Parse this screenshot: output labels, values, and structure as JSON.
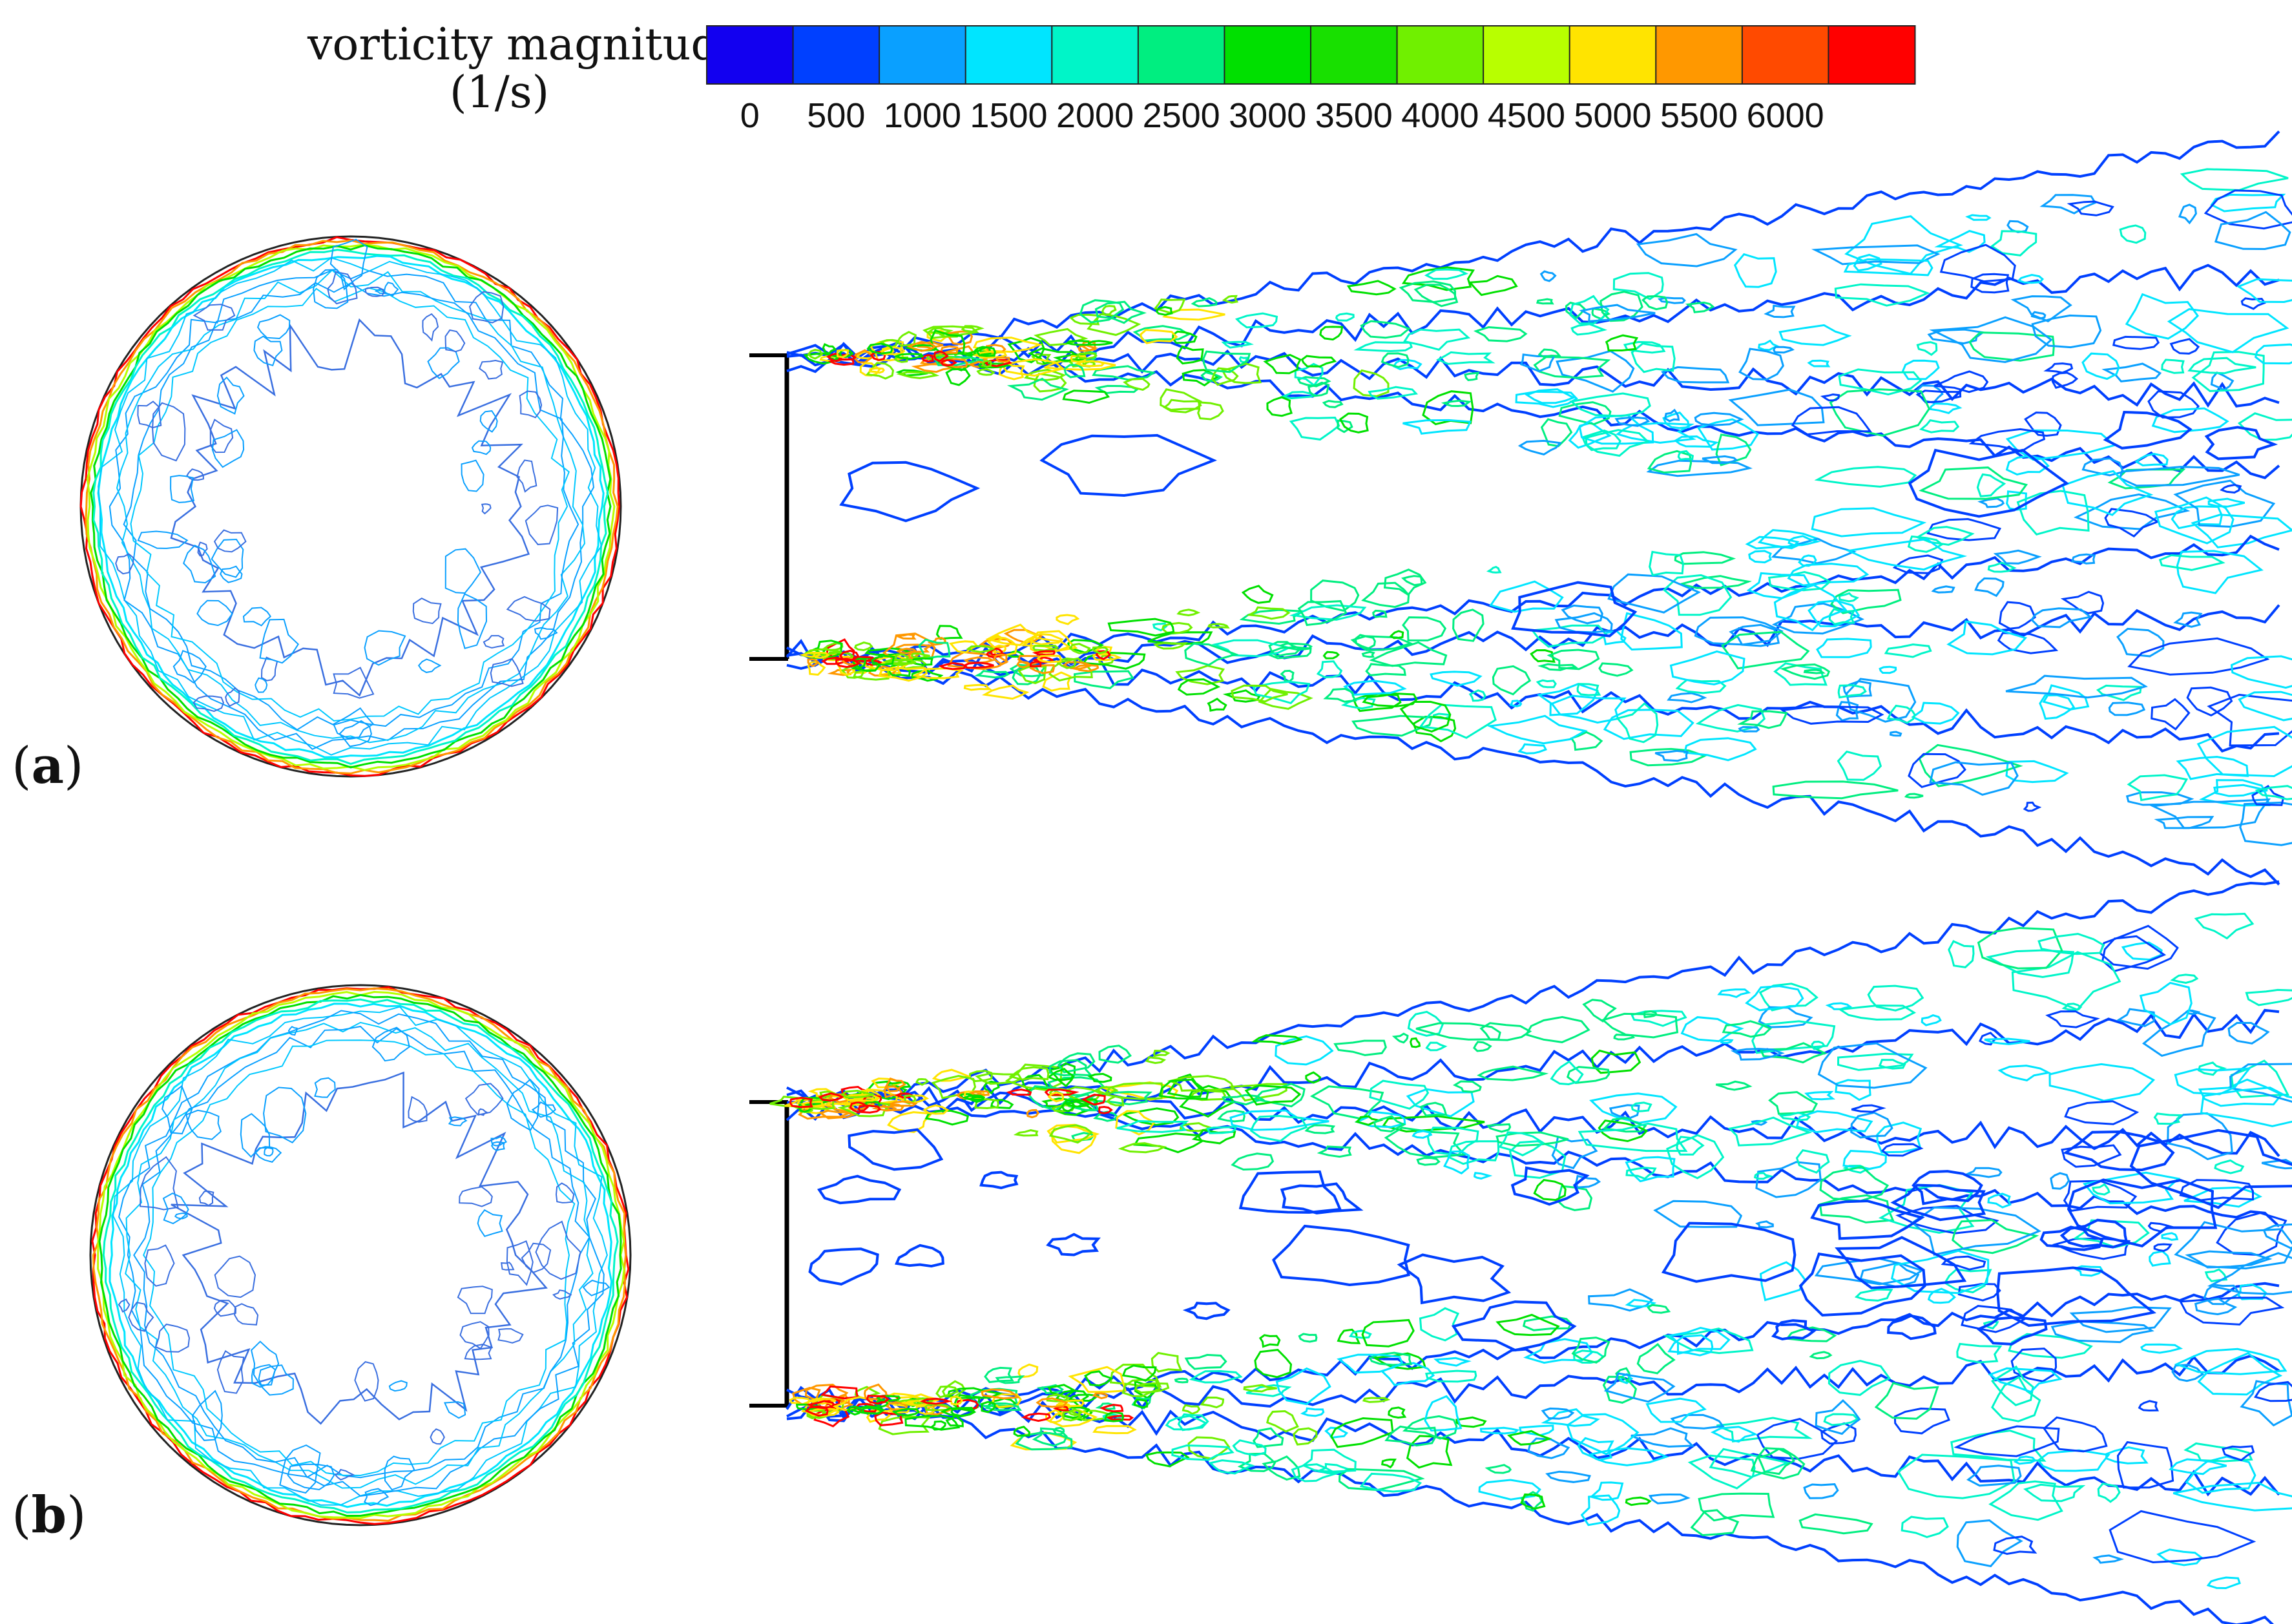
{
  "legend": {
    "title_line1": "vorticity magnitude",
    "title_line2": "(1/s)",
    "tick_labels": [
      "0",
      "500",
      "1000",
      "1500",
      "2000",
      "2500",
      "3000",
      "3500",
      "4000",
      "4500",
      "5000",
      "5500",
      "6000"
    ],
    "colors": [
      "#1200f0",
      "#0040ff",
      "#0aa0ff",
      "#00e5ff",
      "#00f5c8",
      "#00ee80",
      "#00e000",
      "#18e000",
      "#70f000",
      "#b8ff00",
      "#ffe400",
      "#ff9800",
      "#ff4a00",
      "#ff0000"
    ]
  },
  "panels": [
    {
      "id": "a",
      "label_open": "(",
      "label_letter": "a",
      "label_close": ")"
    },
    {
      "id": "b",
      "label_open": "(",
      "label_letter": "b",
      "label_close": ")"
    }
  ]
}
